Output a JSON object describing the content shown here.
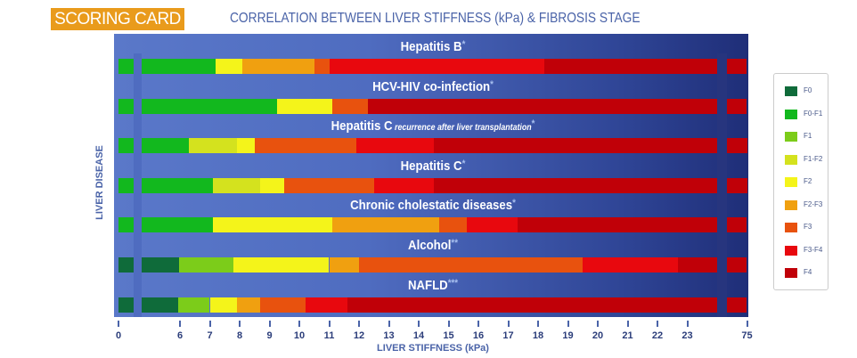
{
  "badge": "SCORING CARD",
  "title": "CORRELATION BETWEEN LIVER STIFFNESS (kPa) & FIBROSIS STAGE",
  "chart_data": {
    "type": "bar",
    "subtype": "stacked-horizontal-range",
    "title": "CORRELATION BETWEEN LIVER STIFFNESS (kPa) & FIBROSIS STAGE",
    "xlabel": "LIVER STIFFNESS (kPa)",
    "ylabel": "LIVER DISEASE",
    "xlim": [
      0,
      75
    ],
    "x_axis_breaks": [
      [
        0,
        6
      ],
      [
        23,
        75
      ]
    ],
    "ticks": [
      "0",
      "6",
      "7",
      "8",
      "9",
      "10",
      "11",
      "12",
      "13",
      "14",
      "15",
      "16",
      "17",
      "18",
      "19",
      "20",
      "21",
      "22",
      "23",
      "75"
    ],
    "tick_values": [
      0,
      6,
      7,
      8,
      9,
      10,
      11,
      12,
      13,
      14,
      15,
      16,
      17,
      18,
      19,
      20,
      21,
      22,
      23,
      75
    ],
    "legend_position": "right",
    "stages": [
      {
        "name": "F0",
        "color": "#0f6b3a"
      },
      {
        "name": "F0-F1",
        "color": "#12b81e"
      },
      {
        "name": "F1",
        "color": "#7ccc1a"
      },
      {
        "name": "F1-F2",
        "color": "#d4e21e"
      },
      {
        "name": "F2",
        "color": "#f4f41a"
      },
      {
        "name": "F2-F3",
        "color": "#f0a010"
      },
      {
        "name": "F3",
        "color": "#e8520e"
      },
      {
        "name": "F3-F4",
        "color": "#e8080e"
      },
      {
        "name": "F4",
        "color": "#c00008"
      }
    ],
    "rows": [
      {
        "name": "Hepatitis B",
        "note": "",
        "asterisks": "*",
        "segments": [
          [
            0,
            7.2,
            "F0-F1"
          ],
          [
            7.2,
            8.1,
            "F2"
          ],
          [
            8.1,
            10.5,
            "F2-F3"
          ],
          [
            10.5,
            11.0,
            "F3"
          ],
          [
            11.0,
            18.2,
            "F3-F4"
          ],
          [
            18.2,
            75,
            "F4"
          ]
        ]
      },
      {
        "name": "HCV-HIV co-infection",
        "note": "",
        "asterisks": "*",
        "segments": [
          [
            0,
            9.25,
            "F0-F1"
          ],
          [
            9.25,
            11.1,
            "F2"
          ],
          [
            11.1,
            12.3,
            "F3"
          ],
          [
            12.3,
            75,
            "F4"
          ]
        ]
      },
      {
        "name": "Hepatitis C",
        "note": "recurrence after liver transplantation",
        "asterisks": "*",
        "segments": [
          [
            0,
            6.3,
            "F0-F1"
          ],
          [
            6.3,
            7.9,
            "F1-F2"
          ],
          [
            7.9,
            8.5,
            "F2"
          ],
          [
            8.5,
            11.9,
            "F3"
          ],
          [
            11.9,
            14.5,
            "F3-F4"
          ],
          [
            14.5,
            75,
            "F4"
          ]
        ]
      },
      {
        "name": "Hepatitis C",
        "note": "",
        "asterisks": "*",
        "segments": [
          [
            0,
            7.1,
            "F0-F1"
          ],
          [
            7.1,
            8.7,
            "F1-F2"
          ],
          [
            8.7,
            9.5,
            "F2"
          ],
          [
            9.5,
            12.5,
            "F3"
          ],
          [
            12.5,
            14.5,
            "F3-F4"
          ],
          [
            14.5,
            75,
            "F4"
          ]
        ]
      },
      {
        "name": "Chronic cholestatic diseases",
        "note": "",
        "asterisks": "*",
        "segments": [
          [
            0,
            7.1,
            "F0-F1"
          ],
          [
            7.1,
            11.1,
            "F2"
          ],
          [
            11.1,
            14.7,
            "F2-F3"
          ],
          [
            14.7,
            15.6,
            "F3"
          ],
          [
            15.6,
            17.3,
            "F3-F4"
          ],
          [
            17.3,
            75,
            "F4"
          ]
        ]
      },
      {
        "name": "Alcohol",
        "note": "",
        "asterisks": "**",
        "segments": [
          [
            0,
            5.9,
            "F0"
          ],
          [
            5.9,
            7.8,
            "F1"
          ],
          [
            7.8,
            11.0,
            "F2"
          ],
          [
            11.0,
            12.0,
            "F2-F3"
          ],
          [
            12.0,
            19.5,
            "F3"
          ],
          [
            19.5,
            22.7,
            "F3-F4"
          ],
          [
            22.7,
            75,
            "F4"
          ]
        ]
      },
      {
        "name": "NAFLD",
        "note": "",
        "asterisks": "***",
        "segments": [
          [
            0,
            5.85,
            "F0"
          ],
          [
            5.85,
            7.0,
            "F1"
          ],
          [
            7.0,
            7.9,
            "F2"
          ],
          [
            7.9,
            8.7,
            "F2-F3"
          ],
          [
            8.7,
            10.2,
            "F3"
          ],
          [
            10.2,
            11.6,
            "F3-F4"
          ],
          [
            11.6,
            75,
            "F4"
          ]
        ]
      }
    ]
  }
}
